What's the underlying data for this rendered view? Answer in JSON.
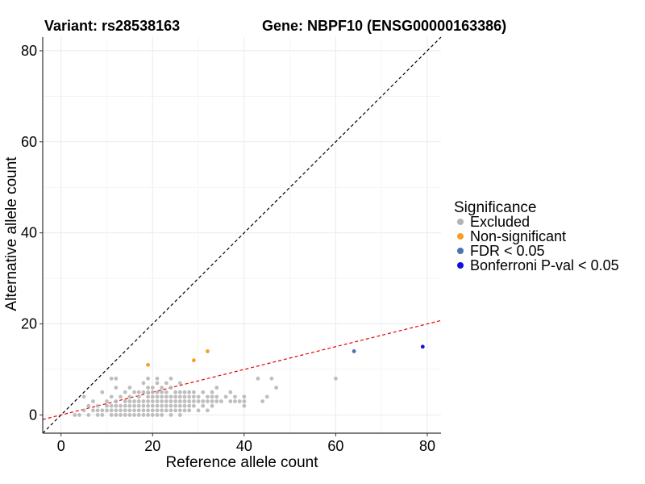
{
  "chart_data": {
    "type": "scatter",
    "title_left": "Variant: rs28538163",
    "title_right": "Gene: NBPF10 (ENSG00000163386)",
    "xlabel": "Reference allele count",
    "ylabel": "Alternative allele count",
    "xlim": [
      -4,
      83
    ],
    "ylim": [
      -4,
      83
    ],
    "x_ticks": [
      0,
      20,
      40,
      60,
      80
    ],
    "y_ticks": [
      0,
      20,
      40,
      60,
      80
    ],
    "grid": true,
    "legend": {
      "title": "Significance",
      "placement": "right",
      "entries": [
        {
          "label": "Excluded",
          "color": "#b3b3b3"
        },
        {
          "label": "Non-significant",
          "color": "#f5a023"
        },
        {
          "label": "FDR < 0.05",
          "color": "#4c72b0"
        },
        {
          "label": "Bonferroni P-val < 0.05",
          "color": "#1010e0"
        }
      ]
    },
    "reference_lines": [
      {
        "kind": "identity",
        "slope": 1,
        "intercept": 0,
        "color": "#000000",
        "dash": true
      },
      {
        "kind": "fit",
        "slope": 0.25,
        "intercept": 0,
        "color": "#e00000",
        "dash": true
      }
    ],
    "series": [
      {
        "name": "Excluded",
        "color": "#b3b3b3",
        "points": [
          [
            3,
            0
          ],
          [
            4,
            0
          ],
          [
            5,
            1
          ],
          [
            5,
            4
          ],
          [
            6,
            0
          ],
          [
            6,
            2
          ],
          [
            7,
            1
          ],
          [
            7,
            3
          ],
          [
            8,
            0
          ],
          [
            8,
            1
          ],
          [
            8,
            2
          ],
          [
            9,
            0
          ],
          [
            9,
            1
          ],
          [
            9,
            5
          ],
          [
            10,
            1
          ],
          [
            10,
            2
          ],
          [
            10,
            3
          ],
          [
            11,
            0
          ],
          [
            11,
            1
          ],
          [
            11,
            2
          ],
          [
            11,
            4
          ],
          [
            11,
            8
          ],
          [
            12,
            0
          ],
          [
            12,
            1
          ],
          [
            12,
            2
          ],
          [
            12,
            3
          ],
          [
            12,
            6
          ],
          [
            12,
            8
          ],
          [
            13,
            0
          ],
          [
            13,
            1
          ],
          [
            13,
            2
          ],
          [
            13,
            4
          ],
          [
            14,
            0
          ],
          [
            14,
            1
          ],
          [
            14,
            2
          ],
          [
            14,
            3
          ],
          [
            14,
            5
          ],
          [
            15,
            0
          ],
          [
            15,
            1
          ],
          [
            15,
            2
          ],
          [
            15,
            3
          ],
          [
            15,
            4
          ],
          [
            15,
            6
          ],
          [
            16,
            0
          ],
          [
            16,
            1
          ],
          [
            16,
            2
          ],
          [
            16,
            3
          ],
          [
            16,
            5
          ],
          [
            17,
            0
          ],
          [
            17,
            1
          ],
          [
            17,
            2
          ],
          [
            17,
            3
          ],
          [
            17,
            4
          ],
          [
            17,
            5
          ],
          [
            18,
            0
          ],
          [
            18,
            1
          ],
          [
            18,
            2
          ],
          [
            18,
            3
          ],
          [
            18,
            5
          ],
          [
            18,
            7
          ],
          [
            19,
            0
          ],
          [
            19,
            1
          ],
          [
            19,
            2
          ],
          [
            19,
            3
          ],
          [
            19,
            4
          ],
          [
            19,
            5
          ],
          [
            19,
            6
          ],
          [
            19,
            8
          ],
          [
            20,
            0
          ],
          [
            20,
            1
          ],
          [
            20,
            2
          ],
          [
            20,
            3
          ],
          [
            20,
            4
          ],
          [
            20,
            5
          ],
          [
            20,
            6
          ],
          [
            21,
            0
          ],
          [
            21,
            1
          ],
          [
            21,
            2
          ],
          [
            21,
            3
          ],
          [
            21,
            4
          ],
          [
            21,
            5
          ],
          [
            21,
            7
          ],
          [
            21,
            8
          ],
          [
            22,
            0
          ],
          [
            22,
            1
          ],
          [
            22,
            2
          ],
          [
            22,
            3
          ],
          [
            22,
            4
          ],
          [
            22,
            5
          ],
          [
            22,
            6
          ],
          [
            23,
            1
          ],
          [
            23,
            2
          ],
          [
            23,
            3
          ],
          [
            23,
            4
          ],
          [
            23,
            5
          ],
          [
            23,
            7
          ],
          [
            24,
            0
          ],
          [
            24,
            1
          ],
          [
            24,
            2
          ],
          [
            24,
            3
          ],
          [
            24,
            4
          ],
          [
            24,
            6
          ],
          [
            24,
            8
          ],
          [
            25,
            1
          ],
          [
            25,
            2
          ],
          [
            25,
            3
          ],
          [
            25,
            4
          ],
          [
            25,
            5
          ],
          [
            26,
            0
          ],
          [
            26,
            1
          ],
          [
            26,
            2
          ],
          [
            26,
            3
          ],
          [
            26,
            4
          ],
          [
            26,
            5
          ],
          [
            26,
            7
          ],
          [
            27,
            1
          ],
          [
            27,
            2
          ],
          [
            27,
            3
          ],
          [
            27,
            4
          ],
          [
            27,
            5
          ],
          [
            28,
            1
          ],
          [
            28,
            2
          ],
          [
            28,
            3
          ],
          [
            28,
            4
          ],
          [
            28,
            5
          ],
          [
            29,
            2
          ],
          [
            29,
            3
          ],
          [
            29,
            4
          ],
          [
            29,
            5
          ],
          [
            30,
            1
          ],
          [
            30,
            3
          ],
          [
            30,
            4
          ],
          [
            31,
            2
          ],
          [
            31,
            3
          ],
          [
            31,
            5
          ],
          [
            32,
            1
          ],
          [
            32,
            3
          ],
          [
            32,
            4
          ],
          [
            33,
            2
          ],
          [
            33,
            3
          ],
          [
            33,
            4
          ],
          [
            33,
            5
          ],
          [
            34,
            3
          ],
          [
            34,
            4
          ],
          [
            34,
            6
          ],
          [
            35,
            3
          ],
          [
            36,
            4
          ],
          [
            37,
            3
          ],
          [
            37,
            5
          ],
          [
            38,
            3
          ],
          [
            38,
            4
          ],
          [
            39,
            3
          ],
          [
            40,
            2
          ],
          [
            40,
            3
          ],
          [
            40,
            4
          ],
          [
            43,
            8
          ],
          [
            44,
            3
          ],
          [
            45,
            4
          ],
          [
            46,
            8
          ],
          [
            47,
            6
          ],
          [
            60,
            8
          ]
        ]
      },
      {
        "name": "Non-significant",
        "color": "#f5a023",
        "points": [
          [
            19,
            11
          ],
          [
            29,
            12
          ],
          [
            32,
            14
          ]
        ]
      },
      {
        "name": "FDR < 0.05",
        "color": "#4c72b0",
        "points": [
          [
            64,
            14
          ]
        ]
      },
      {
        "name": "Bonferroni P-val < 0.05",
        "color": "#1010e0",
        "points": [
          [
            79,
            15
          ]
        ]
      }
    ]
  }
}
